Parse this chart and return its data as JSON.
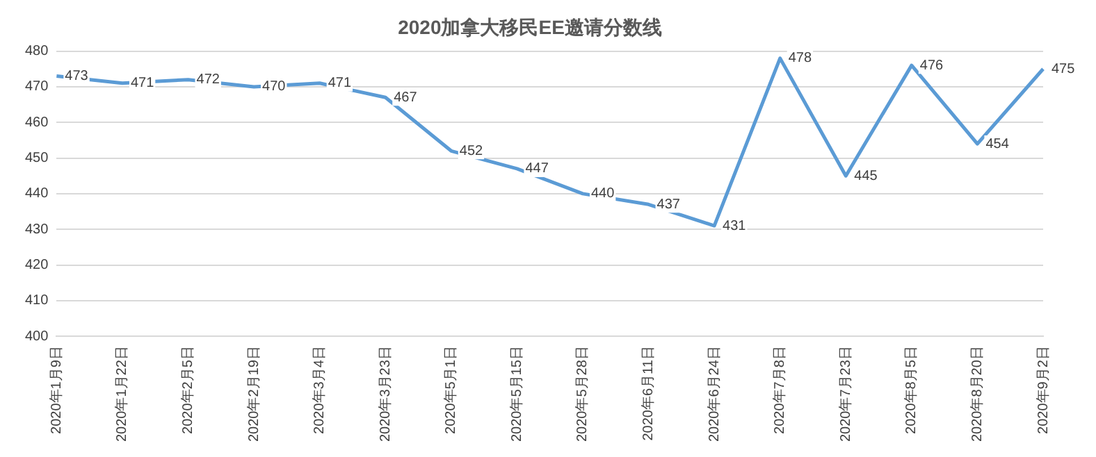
{
  "chart_data": {
    "type": "line",
    "title": "2020加拿大移民EE邀请分数线",
    "categories": [
      "2020年1月9日",
      "2020年1月22日",
      "2020年2月5日",
      "2020年2月19日",
      "2020年3月4日",
      "2020年3月23日",
      "2020年5月1日",
      "2020年5月15日",
      "2020年5月28日",
      "2020年6月11日",
      "2020年6月24日",
      "2020年7月8日",
      "2020年7月23日",
      "2020年8月5日",
      "2020年8月20日",
      "2020年9月2日"
    ],
    "series": [
      {
        "color": "#5b9bd5",
        "values": [
          473,
          471,
          472,
          470,
          471,
          467,
          452,
          447,
          440,
          437,
          431,
          478,
          445,
          476,
          454,
          475
        ]
      }
    ],
    "ylim": [
      400,
      480
    ],
    "yticks": [
      400,
      410,
      420,
      430,
      440,
      450,
      460,
      470,
      480
    ],
    "grid": "y",
    "data_labels": true,
    "legend": false,
    "marker": "none"
  }
}
